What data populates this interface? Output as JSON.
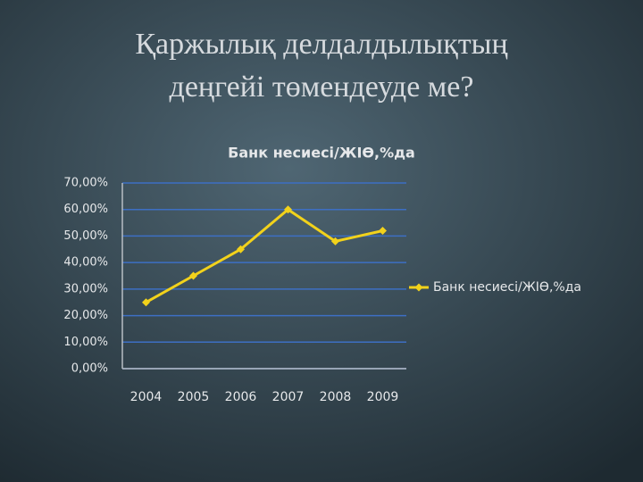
{
  "slide_title": [
    "Қаржылық делдалдылықтың",
    "деңгейі төмендеуде ме?"
  ],
  "chart_data": {
    "type": "line",
    "title": "Банк несиесі/ЖІӨ,%да",
    "categories": [
      "2004",
      "2005",
      "2006",
      "2007",
      "2008",
      "2009"
    ],
    "series": [
      {
        "name": "Банк несиесі/ЖІӨ,%да",
        "color": "#f2d21b",
        "values": [
          25,
          35,
          45,
          60,
          48,
          52
        ]
      }
    ],
    "ylim": [
      0,
      70
    ],
    "yticks": [
      {
        "value": 0,
        "label": "0,00%"
      },
      {
        "value": 10,
        "label": "10,00%"
      },
      {
        "value": 20,
        "label": "20,00%"
      },
      {
        "value": 30,
        "label": "30,00%"
      },
      {
        "value": 40,
        "label": "40,00%"
      },
      {
        "value": 50,
        "label": "50,00%"
      },
      {
        "value": 60,
        "label": "60,00%"
      },
      {
        "value": 70,
        "label": "70,00%"
      }
    ],
    "grid": true,
    "grid_color": "#3d6fc4",
    "legend": "right"
  }
}
